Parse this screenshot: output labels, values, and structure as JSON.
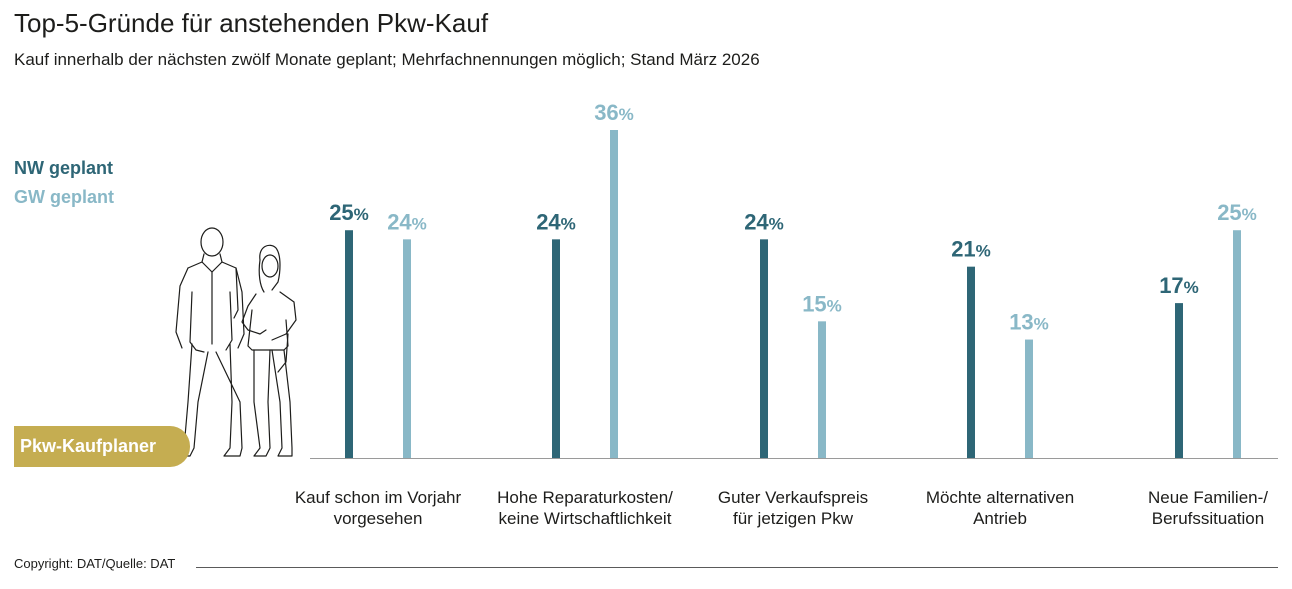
{
  "title": "Top-5-Gründe für anstehenden Pkw-Kauf",
  "subtitle": "Kauf innerhalb der nächsten zwölf Monate geplant; Mehrfachnennungen möglich; Stand März 2026",
  "legend": {
    "nw": "NW geplant",
    "gw": "GW geplant"
  },
  "badge_label": "Pkw-Kaufplaner",
  "copyright": "Copyright: DAT/Quelle: DAT",
  "colors": {
    "nw": "#2e6676",
    "gw": "#89b8c7",
    "badge": "#c5ad51"
  },
  "chart_data": {
    "type": "bar",
    "title": "Top-5-Gründe für anstehenden Pkw-Kauf",
    "categories": [
      [
        "Kauf schon im Vorjahr",
        "vorgesehen"
      ],
      [
        "Hohe Reparaturkosten/",
        "keine Wirtschaftlichkeit"
      ],
      [
        "Guter Verkaufspreis",
        "für jetzigen Pkw"
      ],
      [
        "Möchte alternativen",
        "Antrieb"
      ],
      [
        "Neue Familien-/",
        "Berufssituation"
      ]
    ],
    "series": [
      {
        "name": "NW geplant",
        "values": [
          25,
          24,
          24,
          21,
          17
        ]
      },
      {
        "name": "GW geplant",
        "values": [
          24,
          36,
          15,
          13,
          25
        ]
      }
    ],
    "unit": "%",
    "ylim": [
      0,
      36
    ],
    "grid": false,
    "legend_position": "left"
  }
}
